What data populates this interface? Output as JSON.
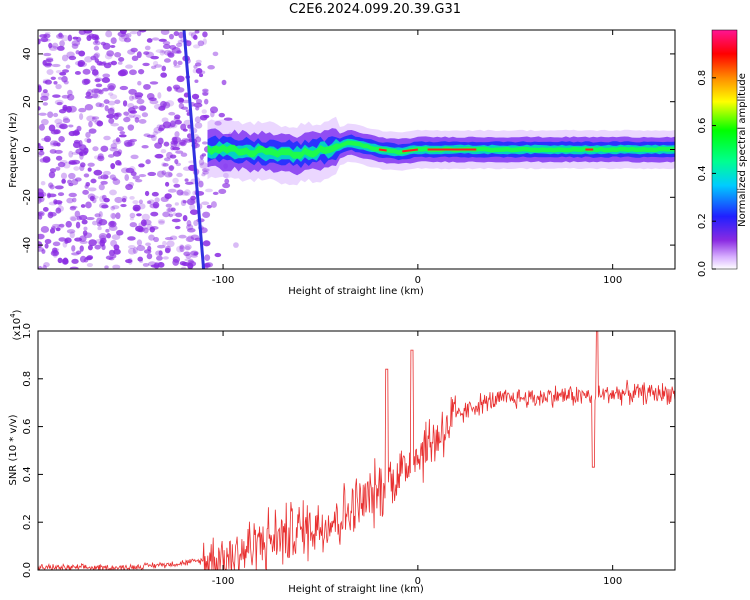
{
  "title": "C2E6.2024.099.20.39.G31",
  "chart_data": [
    {
      "type": "heatmap",
      "xlabel": "Height of straight line (km)",
      "ylabel": "Frequency (Hz)",
      "xlim": [
        -195,
        132
      ],
      "ylim": [
        -50,
        50
      ],
      "xticks": [
        -100,
        0,
        100
      ],
      "yticks": [
        -40,
        -20,
        0,
        20,
        40
      ],
      "colorbar": {
        "label": "Normalized spectral amplitude",
        "ticks": [
          0.0,
          0.2,
          0.4,
          0.6,
          0.8
        ],
        "range": [
          0,
          1
        ]
      },
      "noise_region_x": [
        -195,
        -108
      ],
      "noise_region_color": "#8a2be2",
      "streak": {
        "x_top": -118,
        "x_bottom": -110,
        "color": "#3030e0"
      },
      "carrier": {
        "x_start": -108,
        "x_end": 132,
        "center_y": [
          [
            -108,
            0
          ],
          [
            -80,
            -1
          ],
          [
            -60,
            -2
          ],
          [
            -45,
            0
          ],
          [
            -35,
            3
          ],
          [
            -30,
            2
          ],
          [
            -20,
            0
          ],
          [
            -10,
            -1
          ],
          [
            0,
            0
          ],
          [
            20,
            0
          ],
          [
            60,
            0
          ],
          [
            88,
            0
          ],
          [
            132,
            0
          ]
        ]
      }
    },
    {
      "type": "line",
      "xlabel": "Height of straight line (km)",
      "ylabel": "SNR (10 * v/v)",
      "yscale_label": "(x10",
      "yscale_exp": "4",
      "xlim": [
        -195,
        132
      ],
      "ylim": [
        0,
        1
      ],
      "xticks": [
        -100,
        0,
        100
      ],
      "yticks": [
        "0.0",
        "0.2",
        "0.4",
        "0.6",
        "0.8",
        "1.0"
      ],
      "series": [
        {
          "color": "#e83030",
          "x": [
            -195,
            -150,
            -120,
            -100,
            -90,
            -80,
            -70,
            -60,
            -50,
            -40,
            -30,
            -20,
            -10,
            0,
            10,
            20,
            30,
            40,
            50,
            60,
            70,
            80,
            90,
            100,
            110,
            120,
            132
          ],
          "y": [
            0.01,
            0.01,
            0.03,
            0.05,
            0.08,
            0.12,
            0.14,
            0.17,
            0.19,
            0.22,
            0.27,
            0.33,
            0.4,
            0.48,
            0.56,
            0.64,
            0.69,
            0.71,
            0.72,
            0.72,
            0.73,
            0.73,
            0.73,
            0.74,
            0.74,
            0.74,
            0.74
          ]
        }
      ],
      "spikes": [
        {
          "x": -16,
          "y": 0.84
        },
        {
          "x": -3,
          "y": 0.92
        },
        {
          "x": 92,
          "y": 1.0
        },
        {
          "x": 90,
          "y": 0.43
        }
      ]
    }
  ]
}
